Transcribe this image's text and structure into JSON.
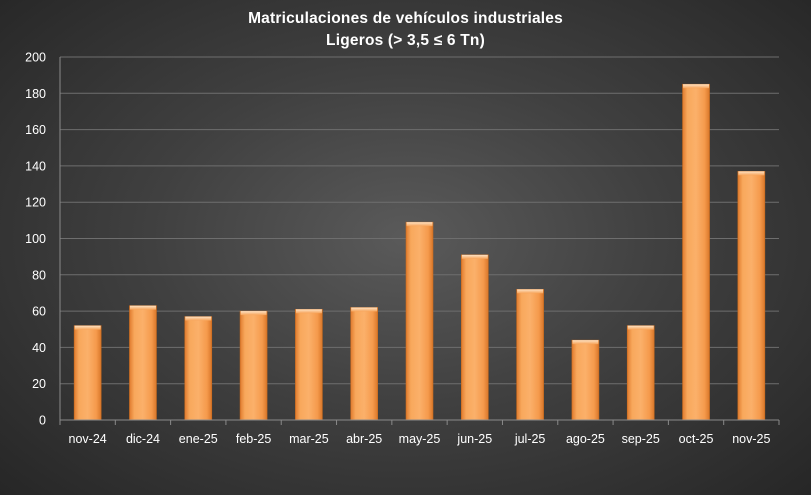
{
  "chart_data": {
    "type": "bar",
    "title": "Matriculaciones de vehículos industriales",
    "subtitle": "Ligeros (> 3,5 ≤ 6 Tn)",
    "categories": [
      "nov-24",
      "dic-24",
      "ene-25",
      "feb-25",
      "mar-25",
      "abr-25",
      "may-25",
      "jun-25",
      "jul-25",
      "ago-25",
      "sep-25",
      "oct-25",
      "nov-25"
    ],
    "values": [
      52,
      63,
      57,
      60,
      61,
      62,
      109,
      91,
      72,
      44,
      52,
      185,
      137
    ],
    "yticks": [
      0,
      20,
      40,
      60,
      80,
      100,
      120,
      140,
      160,
      180,
      200
    ],
    "xlabel": "",
    "ylabel": "",
    "ylim": [
      0,
      200
    ],
    "grid": true,
    "legend": "none",
    "bar_color": "#f79646",
    "background_color": "#404040",
    "text_color": "#ffffff"
  }
}
